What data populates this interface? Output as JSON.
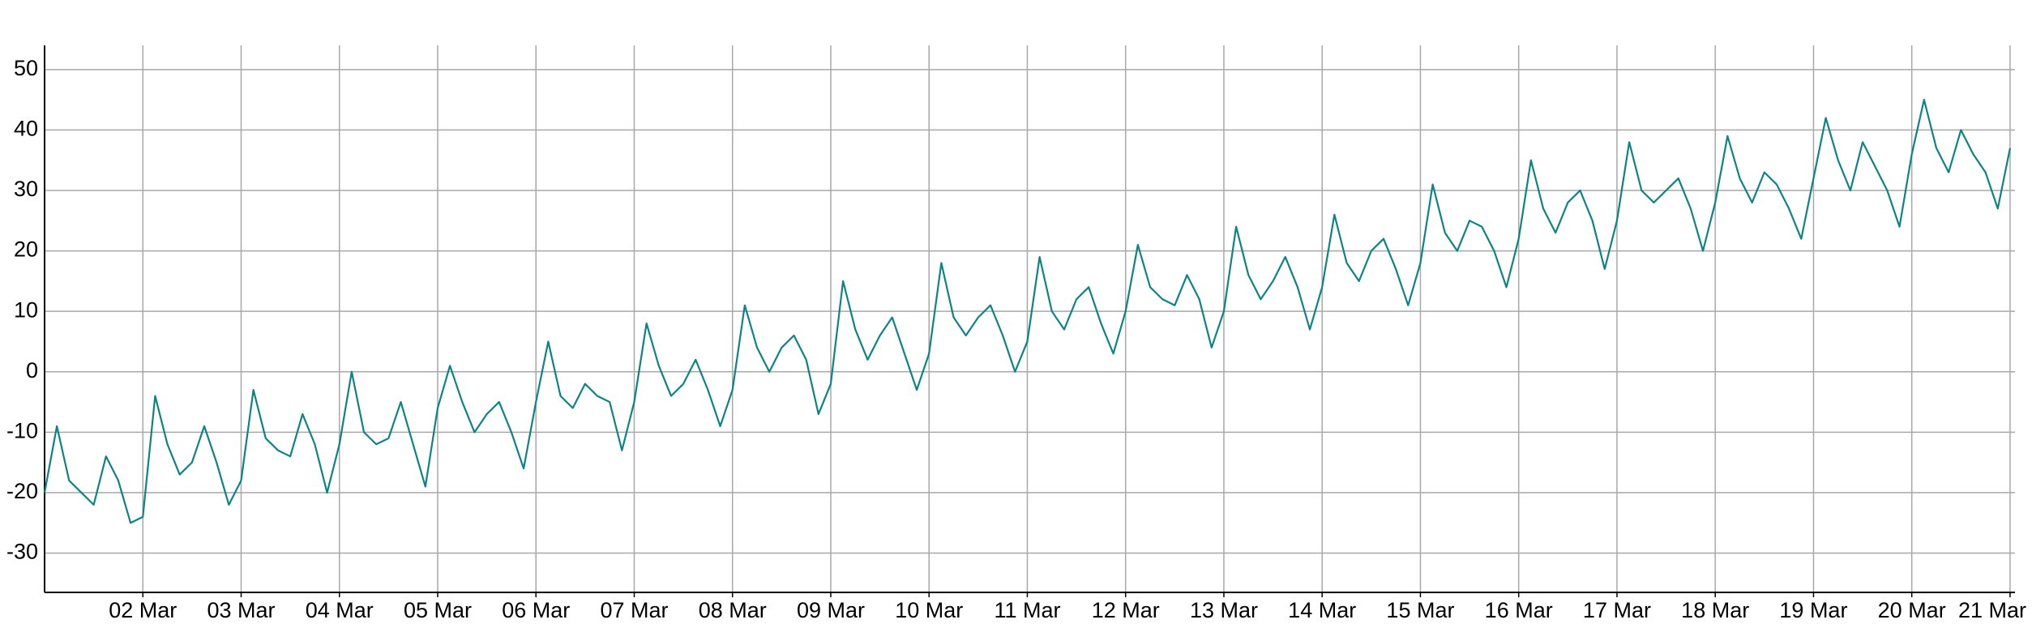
{
  "chart_data": {
    "type": "line",
    "x": [
      1,
      1.125,
      1.25,
      1.375,
      1.5,
      1.625,
      1.75,
      1.875,
      2,
      2.125,
      2.25,
      2.375,
      2.5,
      2.625,
      2.75,
      2.875,
      3,
      3.125,
      3.25,
      3.375,
      3.5,
      3.625,
      3.75,
      3.875,
      4,
      4.125,
      4.25,
      4.375,
      4.5,
      4.625,
      4.75,
      4.875,
      5,
      5.125,
      5.25,
      5.375,
      5.5,
      5.625,
      5.75,
      5.875,
      6,
      6.125,
      6.25,
      6.375,
      6.5,
      6.625,
      6.75,
      6.875,
      7,
      7.125,
      7.25,
      7.375,
      7.5,
      7.625,
      7.75,
      7.875,
      8,
      8.125,
      8.25,
      8.375,
      8.5,
      8.625,
      8.75,
      8.875,
      9,
      9.125,
      9.25,
      9.375,
      9.5,
      9.625,
      9.75,
      9.875,
      10,
      10.125,
      10.25,
      10.375,
      10.5,
      10.625,
      10.75,
      10.875,
      11,
      11.125,
      11.25,
      11.375,
      11.5,
      11.625,
      11.75,
      11.875,
      12,
      12.125,
      12.25,
      12.375,
      12.5,
      12.625,
      12.75,
      12.875,
      13,
      13.125,
      13.25,
      13.375,
      13.5,
      13.625,
      13.75,
      13.875,
      14,
      14.125,
      14.25,
      14.375,
      14.5,
      14.625,
      14.75,
      14.875,
      15,
      15.125,
      15.25,
      15.375,
      15.5,
      15.625,
      15.75,
      15.875,
      16,
      16.125,
      16.25,
      16.375,
      16.5,
      16.625,
      16.75,
      16.875,
      17,
      17.125,
      17.25,
      17.375,
      17.5,
      17.625,
      17.75,
      17.875,
      18,
      18.125,
      18.25,
      18.375,
      18.5,
      18.625,
      18.75,
      18.875,
      19,
      19.125,
      19.25,
      19.375,
      19.5,
      19.625,
      19.75,
      19.875,
      20,
      20.125,
      20.25,
      20.375,
      20.5,
      20.625,
      20.75,
      20.875,
      21
    ],
    "series": [
      {
        "color": "#0e8383",
        "values": [
          -20,
          -9,
          -18,
          -20,
          -22,
          -14,
          -18,
          -25,
          -24,
          -4,
          -12,
          -17,
          -15,
          -9,
          -15,
          -22,
          -18,
          -3,
          -11,
          -13,
          -14,
          -7,
          -12,
          -20,
          -12,
          0,
          -10,
          -12,
          -11,
          -5,
          -12,
          -19,
          -6,
          1,
          -5,
          -10,
          -7,
          -5,
          -10,
          -16,
          -5,
          5,
          -4,
          -6,
          -2,
          -4,
          -5,
          -13,
          -5,
          8,
          1,
          -4,
          -2,
          2,
          -3,
          -9,
          -3,
          11,
          4,
          0,
          4,
          6,
          2,
          -7,
          -2,
          15,
          7,
          2,
          6,
          9,
          3,
          -3,
          3,
          18,
          9,
          6,
          9,
          11,
          6,
          0,
          5,
          19,
          10,
          7,
          12,
          14,
          8,
          3,
          10,
          21,
          14,
          12,
          11,
          16,
          12,
          4,
          10,
          24,
          16,
          12,
          15,
          19,
          14,
          7,
          14,
          26,
          18,
          15,
          20,
          22,
          17,
          11,
          18,
          31,
          23,
          20,
          25,
          24,
          20,
          14,
          22,
          35,
          27,
          23,
          28,
          30,
          25,
          17,
          25,
          38,
          30,
          28,
          30,
          32,
          27,
          20,
          28,
          39,
          32,
          28,
          33,
          31,
          27,
          22,
          32,
          42,
          35,
          30,
          38,
          34,
          30,
          24,
          36,
          45,
          37,
          33,
          40,
          36,
          33,
          27,
          37
        ]
      }
    ],
    "xlim": [
      1,
      21.05
    ],
    "xticks": [
      {
        "value": 2,
        "label": "02 Mar"
      },
      {
        "value": 3,
        "label": "03 Mar"
      },
      {
        "value": 4,
        "label": "04 Mar"
      },
      {
        "value": 5,
        "label": "05 Mar"
      },
      {
        "value": 6,
        "label": "06 Mar"
      },
      {
        "value": 7,
        "label": "07 Mar"
      },
      {
        "value": 8,
        "label": "08 Mar"
      },
      {
        "value": 9,
        "label": "09 Mar"
      },
      {
        "value": 10,
        "label": "10 Mar"
      },
      {
        "value": 11,
        "label": "11 Mar"
      },
      {
        "value": 12,
        "label": "12 Mar"
      },
      {
        "value": 13,
        "label": "13 Mar"
      },
      {
        "value": 14,
        "label": "14 Mar"
      },
      {
        "value": 15,
        "label": "15 Mar"
      },
      {
        "value": 16,
        "label": "16 Mar"
      },
      {
        "value": 17,
        "label": "17 Mar"
      },
      {
        "value": 18,
        "label": "18 Mar"
      },
      {
        "value": 19,
        "label": "19 Mar"
      },
      {
        "value": 20,
        "label": "20 Mar"
      },
      {
        "value": 21,
        "label": "21 Mar"
      }
    ],
    "ylim": [
      -36.5,
      54
    ],
    "yticks": [
      -30,
      -20,
      -10,
      0,
      10,
      20,
      30,
      40,
      50
    ],
    "grid": true
  }
}
